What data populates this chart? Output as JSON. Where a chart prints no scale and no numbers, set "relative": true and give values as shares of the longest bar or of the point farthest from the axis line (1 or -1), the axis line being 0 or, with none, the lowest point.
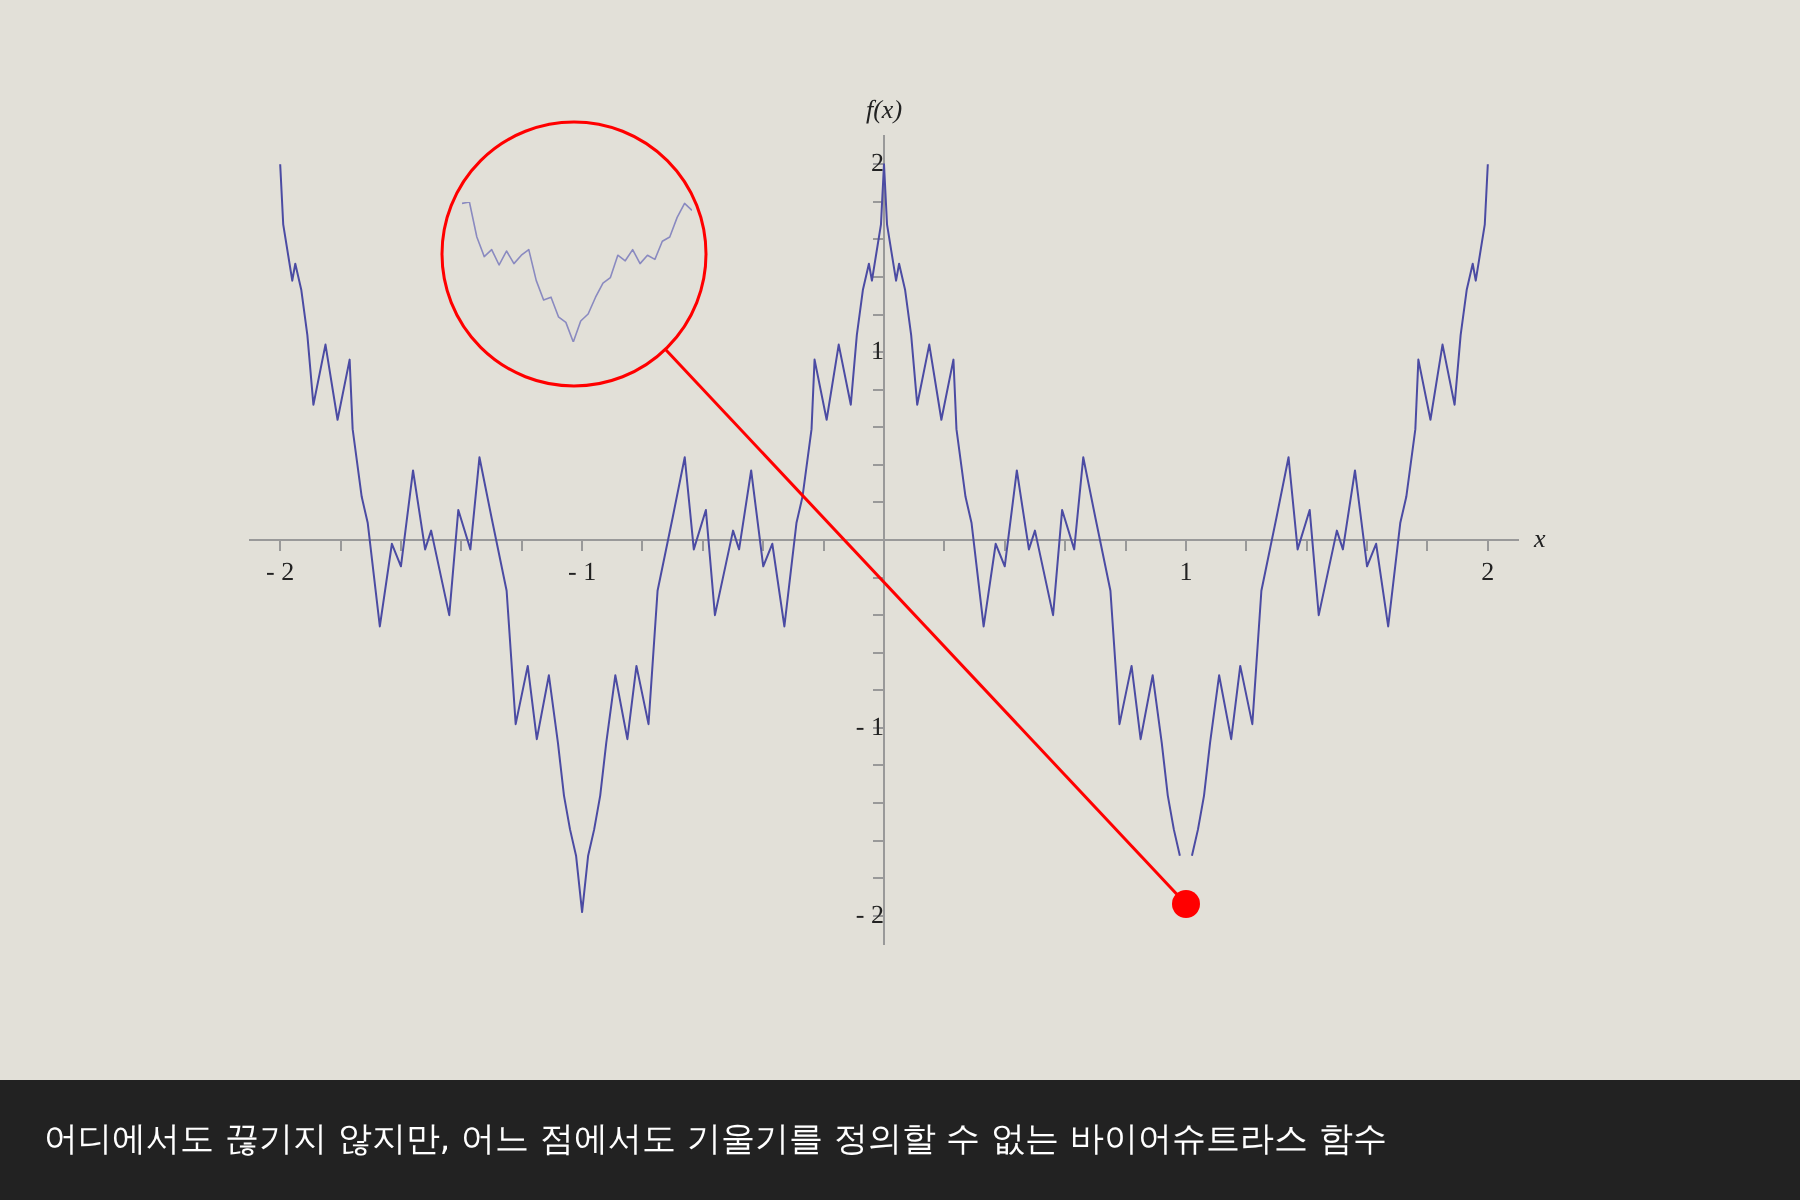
{
  "chart_data": [
    {
      "type": "line",
      "xlabel": "x",
      "ylabel": "f(x)",
      "annotations": [
        "어디에서도 끊기지 않지만, 어느 점에서도 기울기를 정의할 수 없는 바이어슈트라스 함수"
      ],
      "xlim": [
        -2.1,
        2.1
      ],
      "ylim": [
        -2.15,
        2.15
      ],
      "xticks": [
        {
          "value": -2,
          "label": "- 2"
        },
        {
          "value": -1.8,
          "label": null
        },
        {
          "value": -1.6,
          "label": null
        },
        {
          "value": -1.4,
          "label": null
        },
        {
          "value": -1.2,
          "label": null
        },
        {
          "value": -1,
          "label": "- 1"
        },
        {
          "value": -0.8,
          "label": null
        },
        {
          "value": -0.6,
          "label": null
        },
        {
          "value": -0.4,
          "label": null
        },
        {
          "value": -0.2,
          "label": null
        },
        {
          "value": 0.2,
          "label": null
        },
        {
          "value": 0.4,
          "label": null
        },
        {
          "value": 0.6,
          "label": null
        },
        {
          "value": 0.8,
          "label": null
        },
        1,
        {
          "value": 1.2,
          "label": null
        },
        {
          "value": 1.4,
          "label": null
        },
        {
          "value": 1.6,
          "label": null
        },
        {
          "value": 1.8,
          "label": null
        },
        2
      ],
      "yticks": [
        {
          "value": -2,
          "label": "- 2"
        },
        {
          "value": -1.8,
          "label": null
        },
        {
          "value": -1.6,
          "label": null
        },
        {
          "value": -1.4,
          "label": null
        },
        {
          "value": -1.2,
          "label": null
        },
        {
          "value": -1,
          "label": "- 1"
        },
        {
          "value": -0.8,
          "label": null
        },
        {
          "value": -0.6,
          "label": null
        },
        {
          "value": -0.4,
          "label": null
        },
        {
          "value": -0.2,
          "label": null
        },
        {
          "value": 0.2,
          "label": null
        },
        {
          "value": 0.4,
          "label": null
        },
        {
          "value": 0.6,
          "label": null
        },
        {
          "value": 0.8,
          "label": null
        },
        1,
        {
          "value": 1.2,
          "label": null
        },
        {
          "value": 1.4,
          "label": null
        },
        {
          "value": 1.6,
          "label": null
        },
        {
          "value": 1.8,
          "label": null
        },
        2
      ],
      "grid": false,
      "legend": false,
      "marker": "none",
      "line_style": "solid",
      "x": [
        -2,
        -1.99,
        -1.96,
        -1.95,
        -1.93,
        -1.91,
        -1.89,
        -1.85,
        -1.81,
        -1.77,
        -1.76,
        -1.73,
        -1.71,
        -1.67,
        -1.63,
        -1.6,
        -1.56,
        -1.52,
        -1.5,
        -1.44,
        -1.41,
        -1.37,
        -1.34,
        -1.3,
        -1.25,
        -1.22,
        -1.18,
        -1.15,
        -1.11,
        -1.08,
        -1.06,
        -1.04,
        -1.02,
        -1,
        -0.98,
        -0.96,
        -0.94,
        -0.92,
        -0.89,
        -0.85,
        -0.82,
        -0.78,
        -0.75,
        -0.7,
        -0.66,
        -0.63,
        -0.59,
        -0.56,
        -0.5,
        -0.48,
        -0.44,
        -0.4,
        -0.37,
        -0.33,
        -0.29,
        -0.27,
        -0.24,
        -0.23,
        -0.19,
        -0.15,
        -0.11,
        -0.09,
        -0.07,
        -0.05,
        -0.04,
        -0.01,
        0,
        0.01,
        0.04,
        0.05,
        0.07,
        0.09,
        0.11,
        0.15,
        0.19,
        0.23,
        0.24,
        0.27,
        0.29,
        0.33,
        0.37,
        0.4,
        0.44,
        0.48,
        0.5,
        0.56,
        0.59,
        0.63,
        0.66,
        0.7,
        0.75,
        0.78,
        0.82,
        0.85,
        0.89,
        0.92,
        0.94,
        0.96,
        0.98,
        1,
        1.02,
        1.04,
        1.06,
        1.08,
        1.11,
        1.15,
        1.18,
        1.22,
        1.25,
        1.3,
        1.34,
        1.37,
        1.41,
        1.44,
        1.5,
        1.52,
        1.56,
        1.6,
        1.63,
        1.67,
        1.71,
        1.73,
        1.76,
        1.77,
        1.81,
        1.85,
        1.89,
        1.91,
        1.93,
        1.95,
        1.96,
        1.99,
        2
      ],
      "series": [
        {
          "color": "#4b4ba3",
          "values": [
            2,
            1.68,
            1.38,
            1.47,
            1.33,
            1.09,
            0.72,
            1.04,
            0.64,
            0.96,
            0.59,
            0.23,
            0.09,
            -0.46,
            -0.02,
            -0.14,
            0.37,
            -0.05,
            0.05,
            -0.4,
            0.16,
            -0.05,
            0.44,
            0.12,
            -0.27,
            -0.98,
            -0.67,
            -1.06,
            -0.72,
            -1.08,
            -1.36,
            -1.54,
            -1.68,
            -1.98,
            -1.68,
            -1.54,
            -1.36,
            -1.08,
            -0.72,
            -1.06,
            -0.67,
            -0.98,
            -0.27,
            0.12,
            0.44,
            -0.05,
            0.16,
            -0.4,
            0.05,
            -0.05,
            0.37,
            -0.14,
            -0.02,
            -0.46,
            0.09,
            0.23,
            0.59,
            0.96,
            0.64,
            1.04,
            0.72,
            1.09,
            1.33,
            1.47,
            1.38,
            1.68,
            2,
            1.68,
            1.38,
            1.47,
            1.33,
            1.09,
            0.72,
            1.04,
            0.64,
            0.96,
            0.59,
            0.23,
            0.09,
            -0.46,
            -0.02,
            -0.14,
            0.37,
            -0.05,
            0.05,
            -0.4,
            0.16,
            -0.05,
            0.44,
            0.12,
            -0.27,
            -0.98,
            -0.67,
            -1.06,
            -0.72,
            -1.08,
            -1.36,
            -1.54,
            -1.68,
            null,
            -1.68,
            -1.54,
            -1.36,
            -1.08,
            -0.72,
            -1.06,
            -0.67,
            -0.98,
            -0.27,
            0.12,
            0.44,
            -0.05,
            0.16,
            -0.4,
            0.05,
            -0.05,
            0.37,
            -0.14,
            -0.02,
            -0.46,
            0.09,
            0.23,
            0.59,
            0.96,
            0.64,
            1.04,
            0.72,
            1.09,
            1.33,
            1.47,
            1.38,
            1.68,
            2
          ]
        }
      ]
    },
    {
      "type": "line",
      "relative": true,
      "categories": [
        null,
        null,
        null,
        null,
        null,
        null,
        null,
        null,
        null,
        null,
        null,
        null,
        null,
        null,
        null,
        null,
        null,
        null,
        null,
        null,
        null,
        null,
        null,
        null,
        null,
        null,
        null,
        null,
        null,
        null,
        null,
        null
      ],
      "series": [
        {
          "color": "#8a8ac0",
          "values": [
            0.99,
            1,
            0.75,
            0.61,
            0.66,
            0.55,
            0.65,
            0.56,
            0.62,
            0.66,
            0.44,
            0.3,
            0.32,
            0.18,
            0.14,
            0,
            0.15,
            0.2,
            0.32,
            0.42,
            0.46,
            0.62,
            0.58,
            0.66,
            0.56,
            0.62,
            0.59,
            0.72,
            0.75,
            0.89,
            0.99,
            0.94
          ]
        }
      ]
    }
  ]
}
